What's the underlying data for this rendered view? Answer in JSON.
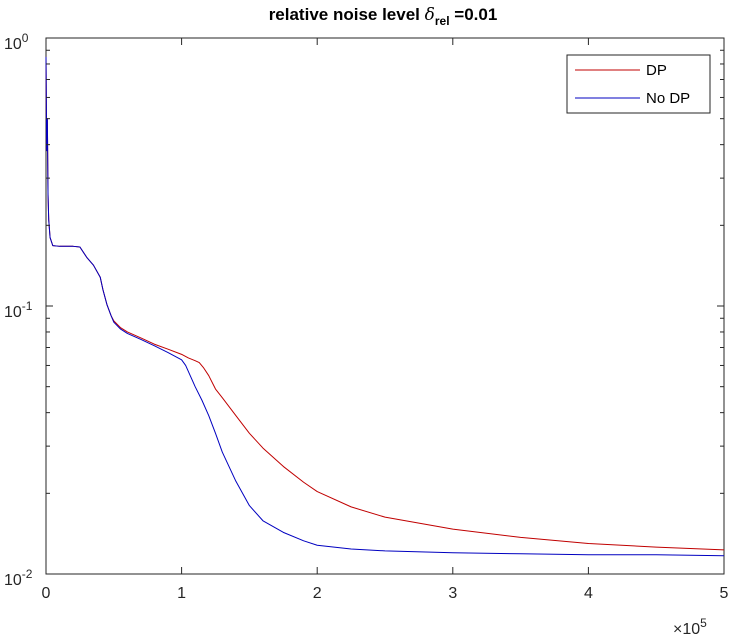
{
  "chart_data": {
    "type": "line",
    "title": {
      "prefix": "relative noise level ",
      "symbol": "δ",
      "subscript": "rel",
      "suffix": " =0.01"
    },
    "xlabel": "",
    "ylabel": "",
    "x_scale": "linear",
    "y_scale": "log",
    "xlim": [
      0,
      500000
    ],
    "ylim": [
      0.01,
      1
    ],
    "x_exponent_label": {
      "base": "×10",
      "exp": "5"
    },
    "x_ticks": [
      {
        "value": 0,
        "label": "0"
      },
      {
        "value": 100000,
        "label": "1"
      },
      {
        "value": 200000,
        "label": "2"
      },
      {
        "value": 300000,
        "label": "3"
      },
      {
        "value": 400000,
        "label": "4"
      },
      {
        "value": 500000,
        "label": "5"
      }
    ],
    "y_ticks": [
      {
        "value": 0.01,
        "base": "10",
        "exp": "-2"
      },
      {
        "value": 0.1,
        "base": "10",
        "exp": "-1"
      },
      {
        "value": 1,
        "base": "10",
        "exp": "0"
      }
    ],
    "grid": false,
    "legend_position": "top-right",
    "series": [
      {
        "name": "DP",
        "color": "#c00000",
        "x": [
          0,
          500,
          1000,
          1500,
          2000,
          3000,
          5000,
          10000,
          20000,
          25000,
          30000,
          35000,
          40000,
          42000,
          45000,
          48000,
          50000,
          55000,
          60000,
          70000,
          80000,
          90000,
          100000,
          105000,
          110000,
          113000,
          116000,
          120000,
          125000,
          130000,
          140000,
          150000,
          160000,
          175000,
          190000,
          200000,
          225000,
          250000,
          300000,
          350000,
          400000,
          450000,
          500000
        ],
        "y": [
          0.85,
          0.38,
          0.5,
          0.26,
          0.21,
          0.18,
          0.168,
          0.167,
          0.167,
          0.166,
          0.152,
          0.142,
          0.128,
          0.115,
          0.101,
          0.092,
          0.088,
          0.083,
          0.08,
          0.076,
          0.072,
          0.069,
          0.066,
          0.064,
          0.0625,
          0.0615,
          0.059,
          0.055,
          0.049,
          0.0455,
          0.039,
          0.0335,
          0.0295,
          0.0252,
          0.022,
          0.0203,
          0.0178,
          0.0163,
          0.0147,
          0.0137,
          0.013,
          0.0126,
          0.0123
        ]
      },
      {
        "name": "No DP",
        "color": "#0000c0",
        "x": [
          0,
          500,
          1000,
          1500,
          2000,
          3000,
          5000,
          10000,
          20000,
          25000,
          30000,
          35000,
          40000,
          42000,
          45000,
          48000,
          50000,
          55000,
          60000,
          70000,
          80000,
          90000,
          100000,
          103000,
          106000,
          110000,
          115000,
          120000,
          125000,
          130000,
          140000,
          150000,
          160000,
          175000,
          190000,
          200000,
          225000,
          250000,
          300000,
          350000,
          400000,
          450000,
          500000
        ],
        "y": [
          0.85,
          0.38,
          0.5,
          0.26,
          0.21,
          0.18,
          0.168,
          0.167,
          0.167,
          0.166,
          0.152,
          0.142,
          0.128,
          0.115,
          0.101,
          0.092,
          0.087,
          0.082,
          0.079,
          0.075,
          0.071,
          0.067,
          0.063,
          0.06,
          0.0555,
          0.05,
          0.0445,
          0.039,
          0.0335,
          0.0285,
          0.0222,
          0.018,
          0.0158,
          0.0143,
          0.0133,
          0.0128,
          0.0124,
          0.0122,
          0.012,
          0.0119,
          0.0118,
          0.0118,
          0.0117
        ]
      }
    ]
  }
}
